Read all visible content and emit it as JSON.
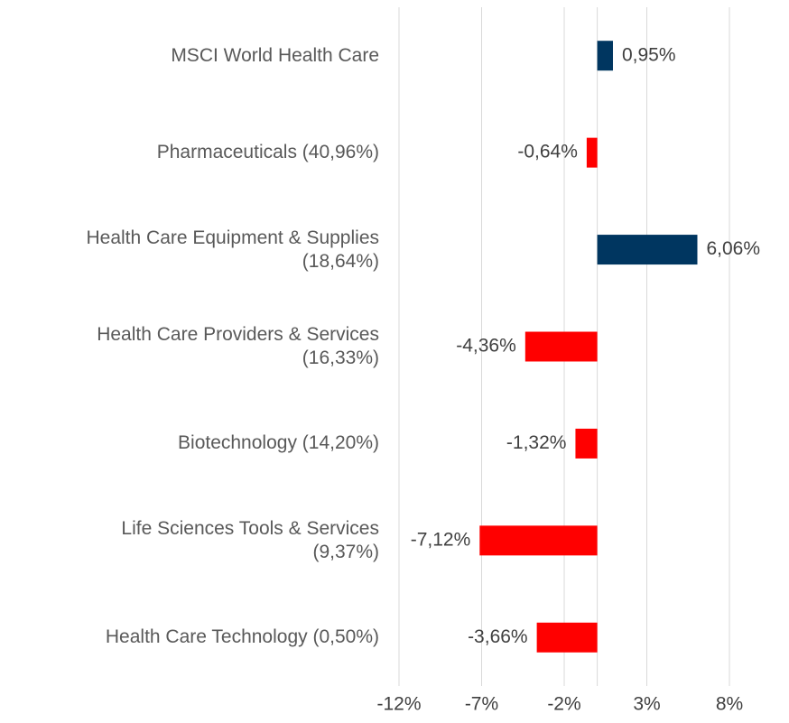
{
  "chart_data": {
    "type": "barh",
    "categories": [
      "MSCI World Health Care",
      "Pharmaceuticals (40,96%)",
      "Health Care Equipment & Supplies\n(18,64%)",
      "Health Care Providers & Services\n(16,33%)",
      "Biotechnology (14,20%)",
      "Life Sciences Tools & Services\n(9,37%)",
      "Health Care Technology (0,50%)"
    ],
    "values": [
      0.95,
      -0.64,
      6.06,
      -4.36,
      -1.32,
      -7.12,
      -3.66
    ],
    "value_labels": [
      "0,95%",
      "-0,64%",
      "6,06%",
      "-4,36%",
      "-1,32%",
      "-7,12%",
      "-3,66%"
    ],
    "colors": [
      "#003660",
      "#ff0000",
      "#003660",
      "#ff0000",
      "#ff0000",
      "#ff0000",
      "#ff0000"
    ],
    "xlim": [
      -12,
      8
    ],
    "xticks": [
      {
        "value": -12,
        "label": "-12%"
      },
      {
        "value": -7,
        "label": "-7%"
      },
      {
        "value": -2,
        "label": "-2%"
      },
      {
        "value": 3,
        "label": "3%"
      },
      {
        "value": 8,
        "label": "8%"
      }
    ],
    "grid": true
  }
}
